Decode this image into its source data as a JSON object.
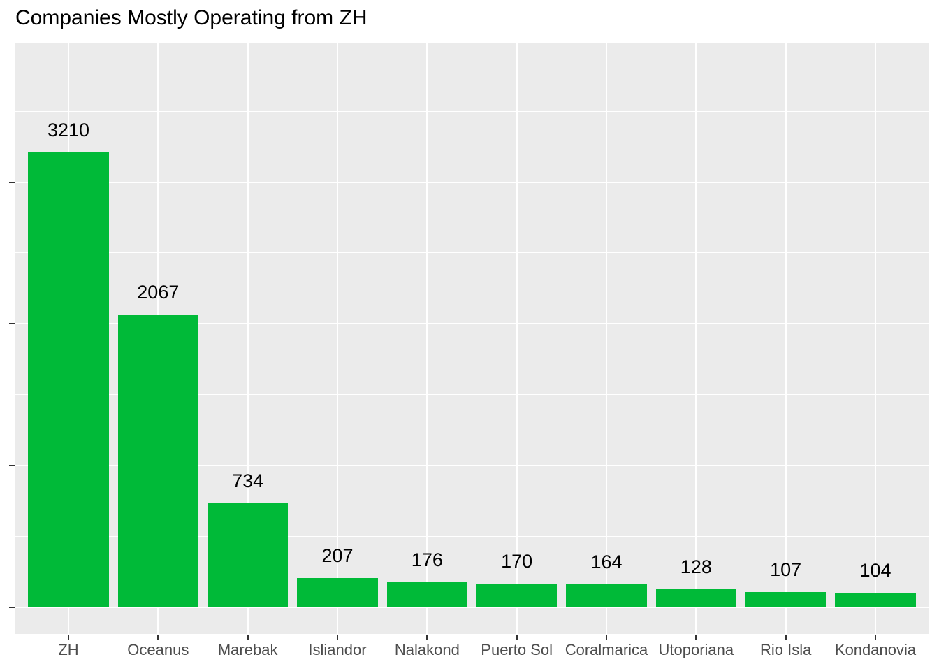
{
  "chart_data": {
    "type": "bar",
    "title": "Companies Mostly Operating from ZH",
    "categories": [
      "ZH",
      "Oceanus",
      "Marebak",
      "Isliandor",
      "Nalakond",
      "Puerto Sol",
      "Coralmarica",
      "Utoporiana",
      "Rio Isla",
      "Kondanovia"
    ],
    "values": [
      3210,
      2067,
      734,
      207,
      176,
      170,
      164,
      128,
      107,
      104
    ],
    "bar_labels": [
      "3210",
      "2067",
      "734",
      "207",
      "176",
      "170",
      "164",
      "128",
      "107",
      "104"
    ],
    "xlabel": "",
    "ylabel": "",
    "ylim": [
      -187,
      3984
    ],
    "y_major_ticks": [
      0,
      1000,
      2000,
      3000
    ],
    "y_minor_gridlines": [
      500,
      1500,
      2500,
      3500
    ],
    "y_tick_labels_visible": false,
    "grid": "on",
    "legend": "none",
    "style": {
      "bar_color": "#00BA38",
      "panel_background": "#EBEBEB",
      "gridline_color": "#FFFFFF",
      "axis_text_color": "#4D4D4D",
      "tick_color": "#333333",
      "title_color": "#000000",
      "bar_label_color": "#000000",
      "figure_background": "#FFFFFF"
    }
  }
}
